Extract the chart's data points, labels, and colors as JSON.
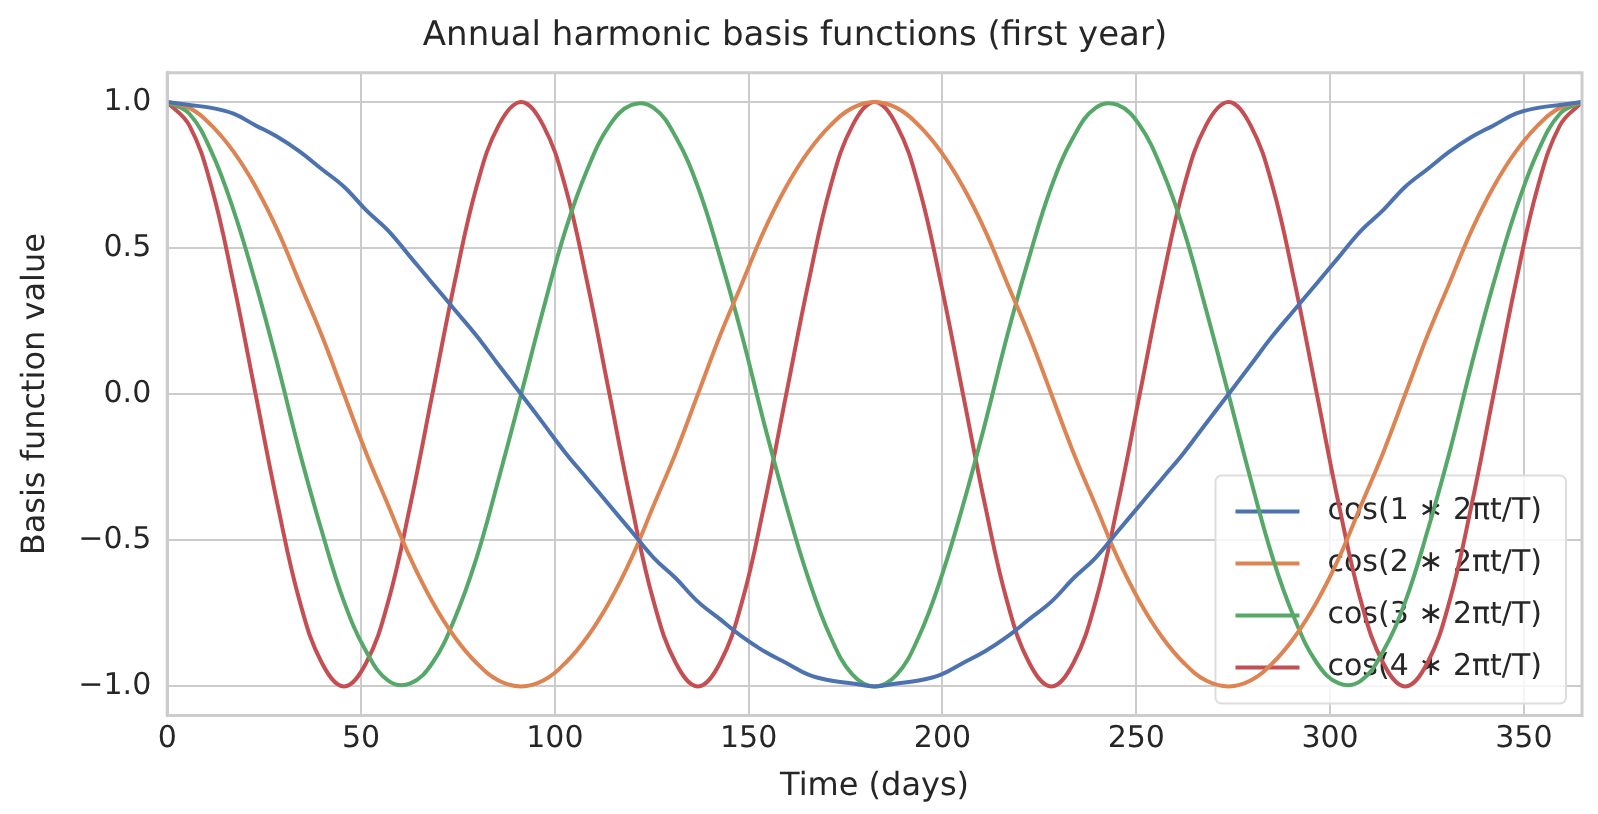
{
  "chart_data": {
    "type": "line",
    "title": "Annual harmonic basis functions (first year)",
    "xlabel": "Time (days)",
    "ylabel": "Basis function value",
    "x": [
      0,
      5.7,
      11.4,
      17.1,
      22.8,
      28.5,
      34.2,
      39.9,
      45.6,
      51.3,
      57.0,
      62.7,
      68.4,
      74.1,
      79.8,
      85.5,
      91.3,
      97.0,
      102.7,
      108.4,
      114.1,
      119.8,
      125.5,
      131.2,
      136.9,
      142.6,
      148.3,
      154.0,
      159.7,
      165.4,
      171.1,
      176.8,
      182.5,
      188.2,
      193.9,
      199.6,
      205.3,
      211.0,
      216.7,
      222.4,
      228.1,
      233.8,
      239.5,
      245.2,
      250.9,
      256.6,
      262.3,
      268.0,
      273.8,
      279.5,
      285.2,
      290.9,
      296.6,
      302.3,
      308.0,
      313.7,
      319.4,
      325.1,
      330.8,
      336.5,
      342.2,
      347.9,
      353.6,
      359.3,
      365
    ],
    "series": [
      {
        "name": "cos(1 ∗ 2πt/T)",
        "color": "#4c72b0",
        "values": [
          1,
          0.99,
          0.98,
          0.96,
          0.92,
          0.88,
          0.83,
          0.77,
          0.71,
          0.63,
          0.56,
          0.47,
          0.38,
          0.29,
          0.2,
          0.1,
          0,
          -0.1,
          -0.2,
          -0.29,
          -0.38,
          -0.47,
          -0.56,
          -0.63,
          -0.71,
          -0.77,
          -0.83,
          -0.88,
          -0.92,
          -0.96,
          -0.98,
          -0.99,
          -1,
          -0.99,
          -0.98,
          -0.96,
          -0.92,
          -0.88,
          -0.83,
          -0.77,
          -0.71,
          -0.63,
          -0.56,
          -0.47,
          -0.38,
          -0.29,
          -0.2,
          -0.1,
          0,
          0.1,
          0.2,
          0.29,
          0.38,
          0.47,
          0.56,
          0.63,
          0.71,
          0.77,
          0.83,
          0.88,
          0.92,
          0.96,
          0.98,
          0.99,
          1
        ]
      },
      {
        "name": "cos(2 ∗ 2πt/T)",
        "color": "#dd8452",
        "values": [
          1,
          0.98,
          0.92,
          0.83,
          0.71,
          0.56,
          0.38,
          0.2,
          0,
          -0.2,
          -0.38,
          -0.56,
          -0.71,
          -0.83,
          -0.92,
          -0.98,
          -1,
          -0.98,
          -0.92,
          -0.83,
          -0.71,
          -0.56,
          -0.38,
          -0.2,
          0,
          0.2,
          0.38,
          0.56,
          0.71,
          0.83,
          0.92,
          0.98,
          1,
          0.98,
          0.92,
          0.83,
          0.71,
          0.56,
          0.38,
          0.2,
          0,
          -0.2,
          -0.38,
          -0.56,
          -0.71,
          -0.83,
          -0.92,
          -0.98,
          -1,
          -0.98,
          -0.92,
          -0.83,
          -0.71,
          -0.56,
          -0.38,
          -0.2,
          0,
          0.2,
          0.38,
          0.56,
          0.71,
          0.83,
          0.92,
          0.98,
          1
        ]
      },
      {
        "name": "cos(3 ∗ 2πt/T)",
        "color": "#55a868",
        "values": [
          1,
          0.96,
          0.83,
          0.63,
          0.38,
          0.1,
          -0.2,
          -0.47,
          -0.71,
          -0.88,
          -0.98,
          -0.99,
          -0.92,
          -0.77,
          -0.56,
          -0.29,
          0,
          0.29,
          0.56,
          0.77,
          0.92,
          0.99,
          0.98,
          0.88,
          0.71,
          0.47,
          0.2,
          -0.1,
          -0.38,
          -0.63,
          -0.83,
          -0.96,
          -1,
          -0.96,
          -0.83,
          -0.63,
          -0.38,
          -0.1,
          0.2,
          0.47,
          0.71,
          0.88,
          0.98,
          0.99,
          0.92,
          0.77,
          0.56,
          0.29,
          0,
          -0.29,
          -0.56,
          -0.77,
          -0.92,
          -0.99,
          -0.98,
          -0.88,
          -0.71,
          -0.47,
          -0.2,
          0.1,
          0.38,
          0.63,
          0.83,
          0.96,
          1
        ]
      },
      {
        "name": "cos(4 ∗ 2πt/T)",
        "color": "#c44e52",
        "values": [
          1,
          0.92,
          0.71,
          0.38,
          0,
          -0.38,
          -0.71,
          -0.92,
          -1,
          -0.92,
          -0.71,
          -0.38,
          0,
          0.38,
          0.71,
          0.92,
          1,
          0.92,
          0.71,
          0.38,
          0,
          -0.38,
          -0.71,
          -0.92,
          -1,
          -0.92,
          -0.71,
          -0.38,
          0,
          0.38,
          0.71,
          0.92,
          1,
          0.92,
          0.71,
          0.38,
          0,
          -0.38,
          -0.71,
          -0.92,
          -1,
          -0.92,
          -0.71,
          -0.38,
          0,
          0.38,
          0.71,
          0.92,
          1,
          0.92,
          0.71,
          0.38,
          0,
          -0.38,
          -0.71,
          -0.92,
          -1,
          -0.92,
          -0.71,
          -0.38,
          0,
          0.38,
          0.71,
          0.92,
          1
        ]
      }
    ],
    "xlim": [
      0,
      365
    ],
    "xticks": [
      0,
      50,
      100,
      150,
      200,
      250,
      300,
      350
    ],
    "ylim": [
      -1.1,
      1.1
    ],
    "yticks": [
      {
        "value": -1,
        "label": "−1.0"
      },
      {
        "value": -0.5,
        "label": "−0.5"
      },
      {
        "value": 0,
        "label": "0.0"
      },
      {
        "value": 0.5,
        "label": "0.5"
      },
      {
        "value": 1,
        "label": "1.0"
      }
    ],
    "grid": true,
    "legend": "bottom right",
    "marker": "none",
    "line_style": "solid"
  }
}
